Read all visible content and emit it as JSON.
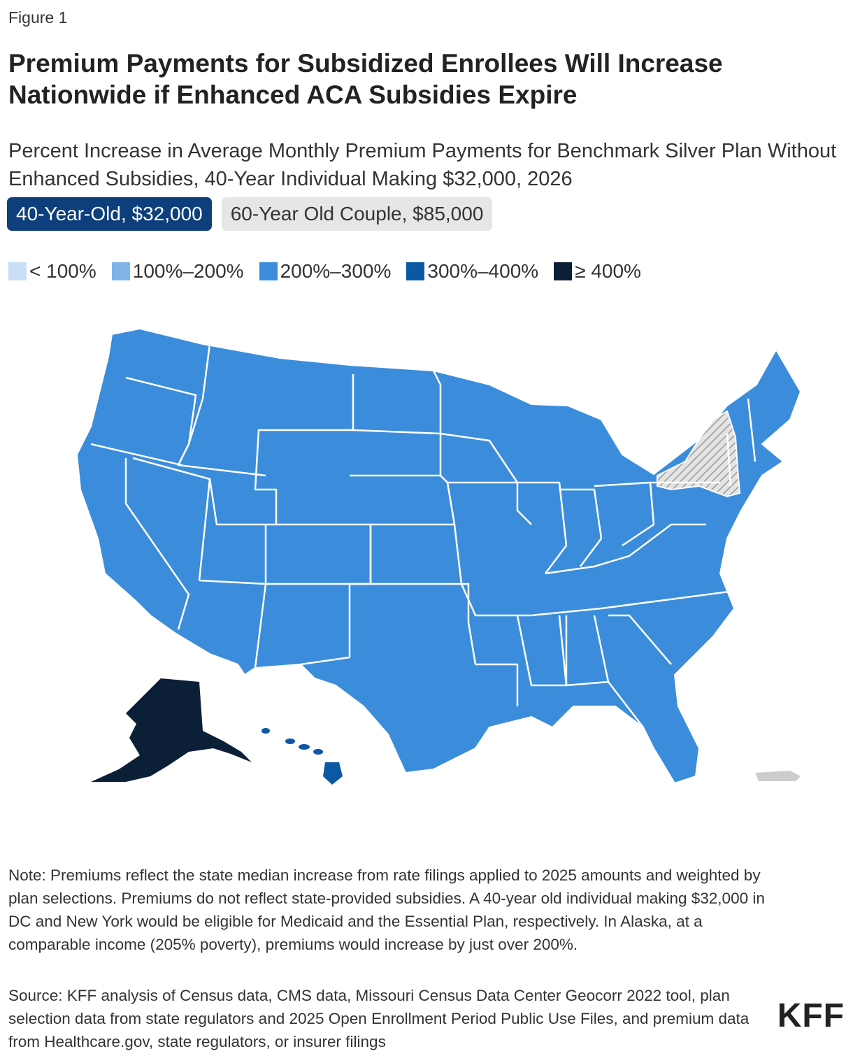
{
  "figure_label": "Figure 1",
  "title": "Premium Payments for Subsidized Enrollees Will Increase Nationwide if Enhanced ACA Subsidies Expire",
  "subtitle": "Percent Increase in Average Monthly Premium Payments for Benchmark Silver Plan Without Enhanced Subsidies, 40-Year Individual Making $32,000, 2026",
  "tabs": [
    {
      "label": "40-Year-Old, $32,000",
      "active": true
    },
    {
      "label": "60-Year Old Couple, $85,000",
      "active": false
    }
  ],
  "legend": [
    {
      "label": "< 100%",
      "color": "#c8dff5"
    },
    {
      "label": "100%–200%",
      "color": "#7fb4e8"
    },
    {
      "label": "200%–300%",
      "color": "#3b8ddb"
    },
    {
      "label": "300%–400%",
      "color": "#0b58a4"
    },
    {
      "label": "≥ 400%",
      "color": "#0b1f36"
    }
  ],
  "map_colors": {
    "contiguous": "#3b8ddb",
    "alaska": "#0b1f36",
    "hawaii": "#0b58a4",
    "new_york": "hatched-gray",
    "puerto_rico": "#cccccc",
    "border": "#ffffff"
  },
  "note": "Note: Premiums reflect the state median increase from rate filings applied to 2025 amounts and weighted by plan selections. Premiums do not reflect state-provided subsidies. A 40-year old individual making $32,000 in DC and New York would be eligible for Medicaid and the Essential Plan, respectively. In Alaska, at a comparable income (205% poverty), premiums would increase by just over 200%.",
  "source": "Source: KFF analysis of Census data, CMS data, Missouri Census Data Center Geocorr 2022 tool, plan selection data from state regulators and 2025 Open Enrollment Period Public Use Files, and premium data from Healthcare.gov, state regulators, or insurer filings",
  "logo": "KFF"
}
